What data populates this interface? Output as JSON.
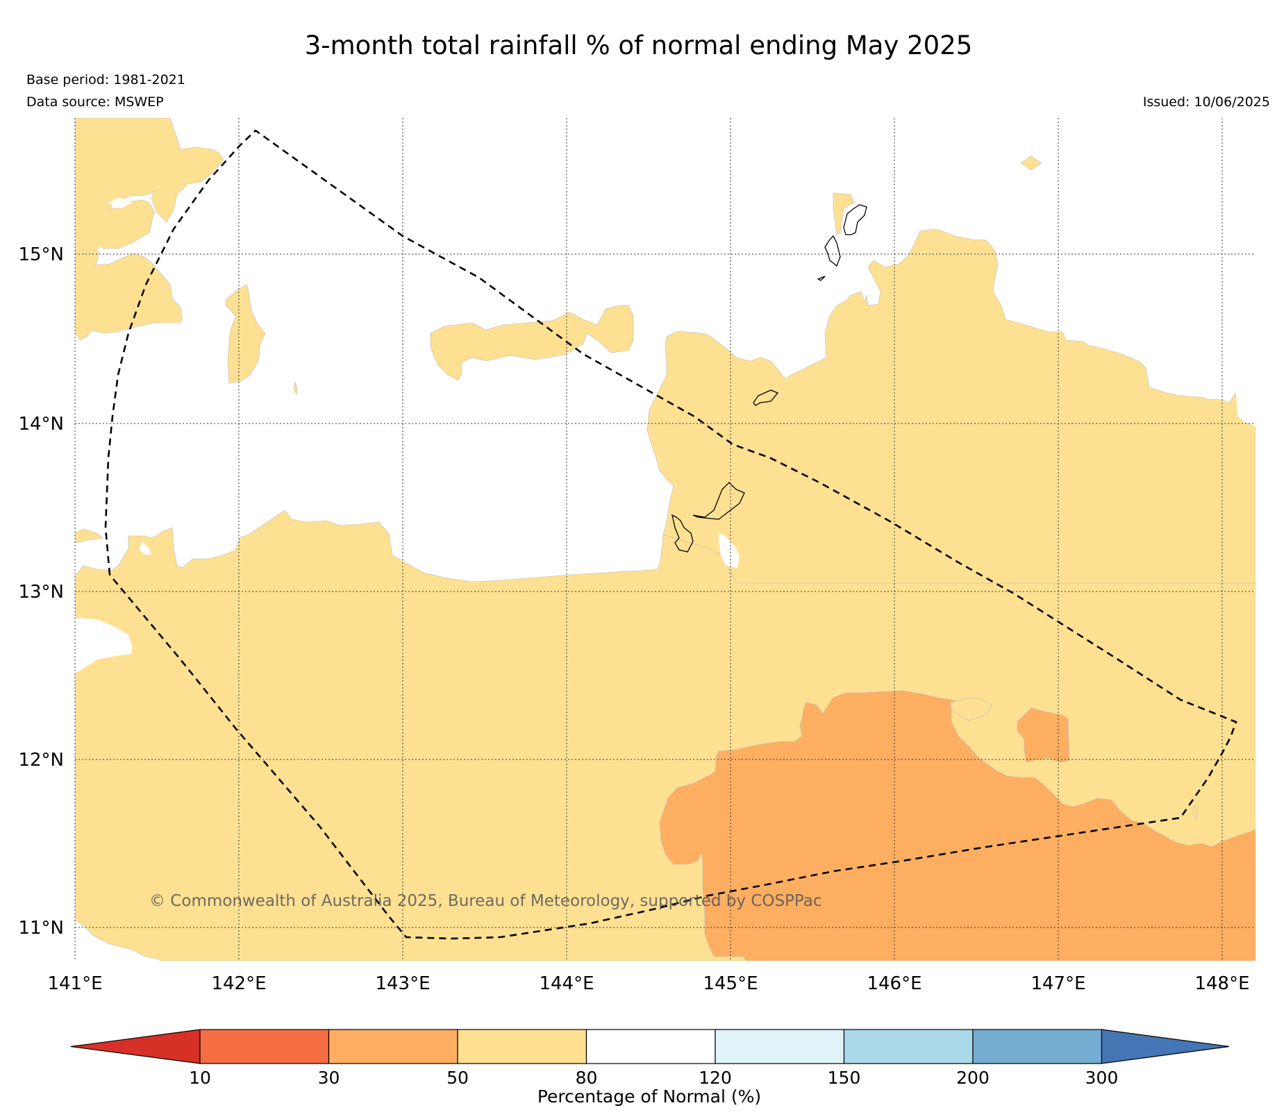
{
  "title": "3-month total rainfall % of normal ending May 2025",
  "base_period": "Base period: 1981-2021",
  "data_source": "Data source: MSWEP",
  "issued": "Issued: 10/06/2025",
  "copyright": "© Commonwealth of Australia 2025, Bureau of Meteorology, supported by COSPPac",
  "map": {
    "lon_labels": [
      "141°E",
      "142°E",
      "143°E",
      "144°E",
      "145°E",
      "146°E",
      "147°E",
      "148°E"
    ],
    "lat_labels": [
      "15°N",
      "14°N",
      "13°N",
      "12°N",
      "11°N"
    ],
    "grid": true,
    "zones": [
      {
        "name": "50-80% of normal",
        "color": "#fde092"
      },
      {
        "name": "30-50% of normal",
        "color": "#fdae61"
      },
      {
        "name": "80-120% of normal",
        "color": "#ffffff"
      }
    ],
    "outline": "dashed boundary"
  },
  "colorbar": {
    "label": "Percentage of Normal (%)",
    "ticks": [
      "10",
      "30",
      "50",
      "80",
      "120",
      "150",
      "200",
      "300"
    ],
    "colors": [
      "#d73027",
      "#f46d43",
      "#fdae61",
      "#fee090",
      "#ffffff",
      "#e0f3f8",
      "#abd9e9",
      "#74add1",
      "#4575b4"
    ]
  }
}
